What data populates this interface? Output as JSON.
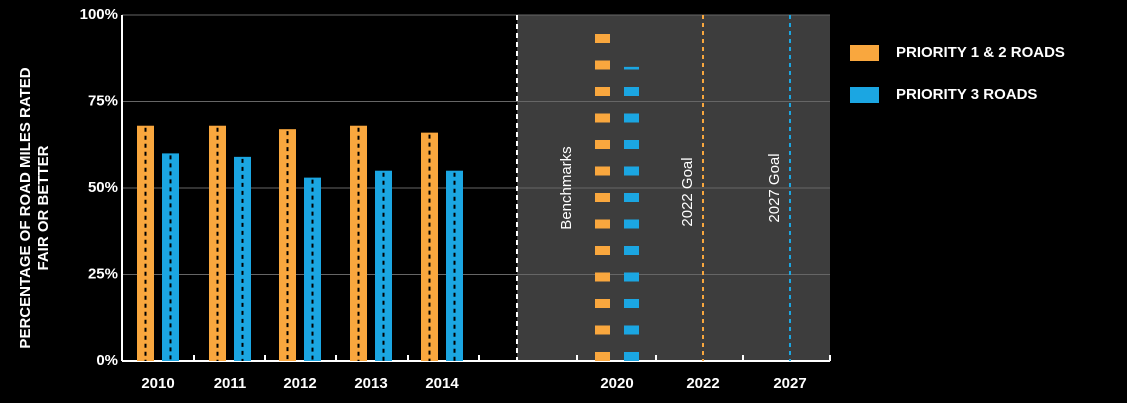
{
  "chart_data": {
    "type": "bar",
    "ylabel": [
      "PERCENTAGE OF ROAD MILES RATED",
      "FAIR OR BETTER"
    ],
    "categories": [
      "2010",
      "2011",
      "2012",
      "2013",
      "2014",
      "2020",
      "2022",
      "2027"
    ],
    "series": [
      {
        "name": "PRIORITY 1 & 2 ROADS",
        "color": "#f9a73e",
        "values": [
          68,
          68,
          67,
          68,
          66,
          95,
          null,
          null
        ]
      },
      {
        "name": "PRIORITY 3 ROADS",
        "color": "#1ba6e2",
        "values": [
          60,
          59,
          53,
          55,
          55,
          85,
          null,
          null
        ]
      }
    ],
    "ylim": [
      0,
      100
    ],
    "yticks": [
      {
        "value": 0,
        "label": "0%"
      },
      {
        "value": 25,
        "label": "25%"
      },
      {
        "value": 50,
        "label": "50%"
      },
      {
        "value": 75,
        "label": "75%"
      },
      {
        "value": 100,
        "label": "100%"
      }
    ],
    "grid": true,
    "annotations": [
      "Benchmarks",
      "2022 Goal",
      "2027 Goal"
    ]
  }
}
